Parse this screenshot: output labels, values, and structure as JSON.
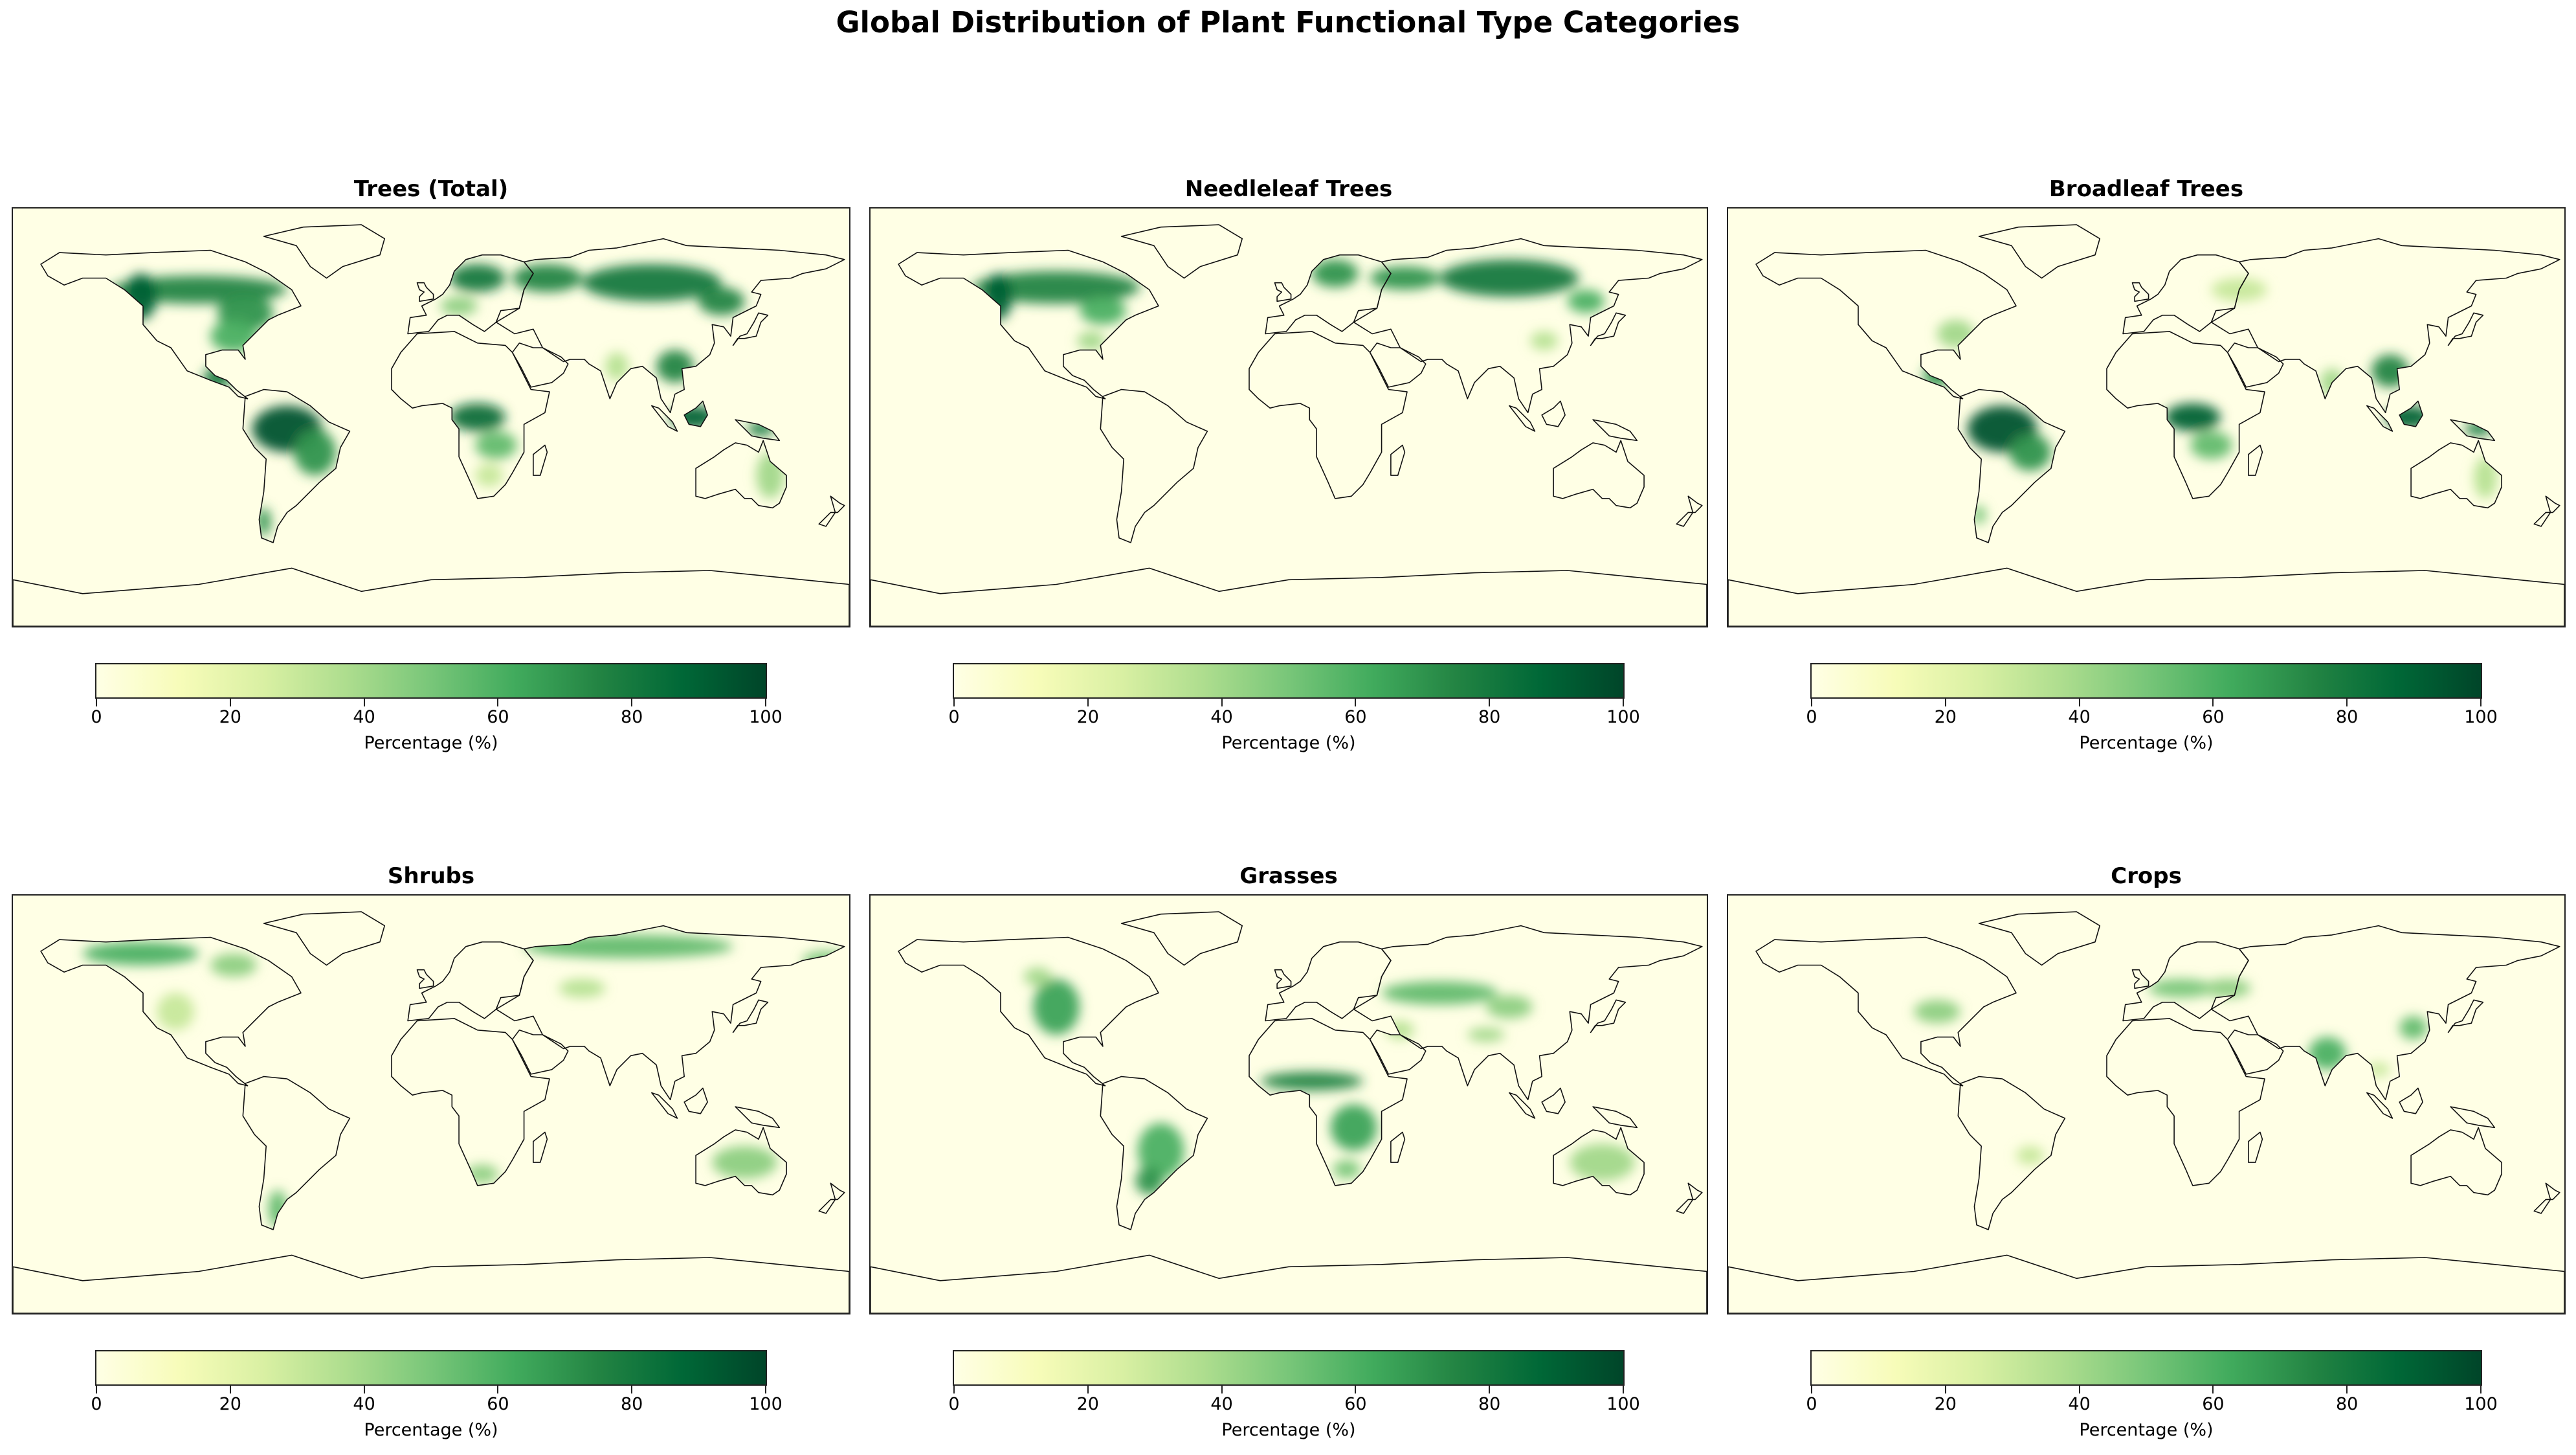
{
  "title": "Global Distribution of Plant Functional Type Categories",
  "colormap": [
    "#ffffe5",
    "#f7fcb9",
    "#d9f0a3",
    "#addd8e",
    "#78c679",
    "#41ab5d",
    "#238443",
    "#006837",
    "#004529"
  ],
  "panels": [
    {
      "key": "trees",
      "title": "Trees (Total)",
      "colorbar_label": "Percentage (%)"
    },
    {
      "key": "needleleaf",
      "title": "Needleleaf Trees",
      "colorbar_label": "Percentage (%)"
    },
    {
      "key": "broadleaf",
      "title": "Broadleaf Trees",
      "colorbar_label": "Percentage (%)"
    },
    {
      "key": "shrubs",
      "title": "Shrubs",
      "colorbar_label": "Percentage (%)"
    },
    {
      "key": "grasses",
      "title": "Grasses",
      "colorbar_label": "Percentage (%)"
    },
    {
      "key": "crops",
      "title": "Crops",
      "colorbar_label": "Percentage (%)"
    }
  ],
  "colorbar_ticks": [
    0,
    20,
    40,
    60,
    80,
    100
  ],
  "colorbar_range": [
    0,
    100
  ]
}
